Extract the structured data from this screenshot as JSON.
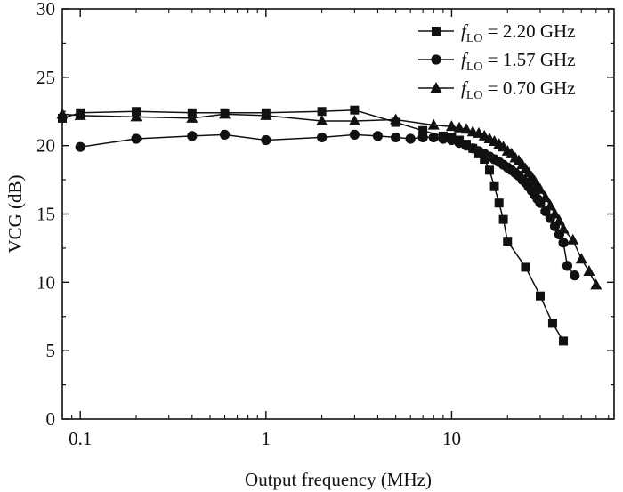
{
  "chart_data": {
    "type": "line",
    "xlabel": "Output frequency (MHz)",
    "ylabel": "VCG (dB)",
    "xscale": "log",
    "xlim": [
      0.08,
      75
    ],
    "ylim": [
      0,
      30
    ],
    "xticks": [
      {
        "value": 0.1,
        "label": "0.1"
      },
      {
        "value": 1,
        "label": "1"
      },
      {
        "value": 10,
        "label": "10"
      }
    ],
    "yticks": [
      {
        "value": 0,
        "label": "0"
      },
      {
        "value": 5,
        "label": "5"
      },
      {
        "value": 10,
        "label": "10"
      },
      {
        "value": 15,
        "label": "15"
      },
      {
        "value": 20,
        "label": "20"
      },
      {
        "value": 25,
        "label": "25"
      },
      {
        "value": 30,
        "label": "30"
      }
    ],
    "grid": false,
    "legend_position": "top-right",
    "series": [
      {
        "name_var": "f",
        "name_sub": "LO",
        "name_rest": " = 2.20 GHz",
        "marker": "square",
        "x": [
          0.08,
          0.1,
          0.2,
          0.4,
          0.6,
          1,
          2,
          3,
          5,
          7,
          9,
          10,
          11,
          12,
          13,
          14,
          15,
          16,
          17,
          18,
          19,
          20,
          25,
          30,
          35,
          40
        ],
        "y": [
          22.0,
          22.4,
          22.5,
          22.4,
          22.4,
          22.4,
          22.5,
          22.6,
          21.7,
          21.1,
          20.7,
          20.6,
          20.4,
          20.1,
          19.8,
          19.4,
          19.0,
          18.2,
          17.0,
          15.8,
          14.6,
          13.0,
          11.1,
          9.0,
          7.0,
          5.7
        ]
      },
      {
        "name_var": "f",
        "name_sub": "LO",
        "name_rest": " = 1.57 GHz",
        "marker": "circle",
        "x": [
          0.1,
          0.2,
          0.4,
          0.6,
          1,
          2,
          3,
          4,
          5,
          6,
          7,
          8,
          9,
          10,
          11,
          12,
          13,
          14,
          15,
          16,
          17,
          18,
          19,
          20,
          21,
          22,
          23,
          24,
          25,
          26,
          27,
          28,
          29,
          30,
          32,
          34,
          36,
          38,
          40,
          42,
          46
        ],
        "y": [
          19.9,
          20.5,
          20.7,
          20.8,
          20.4,
          20.6,
          20.8,
          20.7,
          20.6,
          20.5,
          20.6,
          20.6,
          20.5,
          20.4,
          20.2,
          20.0,
          19.8,
          19.6,
          19.4,
          19.2,
          19.0,
          18.8,
          18.6,
          18.4,
          18.2,
          18.0,
          17.8,
          17.5,
          17.3,
          17.0,
          16.7,
          16.4,
          16.1,
          15.8,
          15.2,
          14.7,
          14.1,
          13.5,
          12.9,
          11.2,
          10.5
        ]
      },
      {
        "name_var": "f",
        "name_sub": "LO",
        "name_rest": " = 0.70 GHz",
        "marker": "triangle",
        "x": [
          0.08,
          0.1,
          0.2,
          0.4,
          0.6,
          1,
          2,
          3,
          5,
          8,
          10,
          11,
          12,
          13,
          14,
          15,
          16,
          17,
          18,
          19,
          20,
          21,
          22,
          23,
          24,
          25,
          26,
          27,
          28,
          29,
          30,
          32,
          34,
          36,
          38,
          40,
          45,
          50,
          55,
          60
        ],
        "y": [
          22.3,
          22.2,
          22.1,
          22.0,
          22.3,
          22.2,
          21.8,
          21.8,
          21.9,
          21.5,
          21.4,
          21.3,
          21.2,
          21.0,
          20.9,
          20.7,
          20.5,
          20.3,
          20.1,
          19.9,
          19.6,
          19.4,
          19.1,
          18.9,
          18.6,
          18.3,
          18.0,
          17.7,
          17.4,
          17.1,
          16.8,
          16.2,
          15.6,
          15.0,
          14.5,
          13.9,
          13.1,
          11.7,
          10.8,
          9.8
        ]
      }
    ]
  }
}
